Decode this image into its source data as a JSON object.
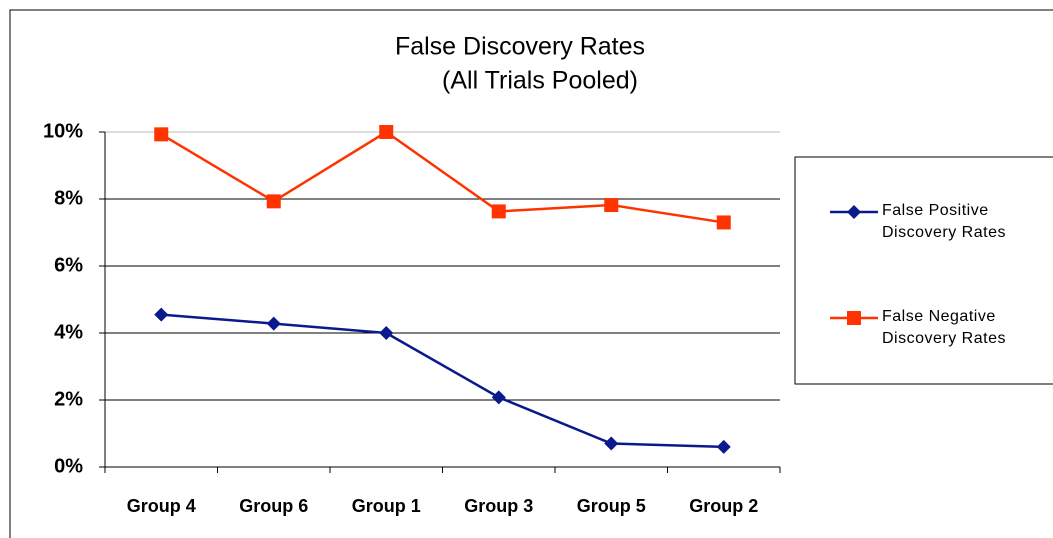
{
  "chart_data": {
    "type": "line",
    "title": "False Discovery Rates",
    "subtitle": "(All Trials Pooled)",
    "categories": [
      "Group 4",
      "Group 6",
      "Group 1",
      "Group 3",
      "Group 5",
      "Group 2"
    ],
    "series": [
      {
        "name": "False Positive Discovery Rates",
        "color": "#0a1a8c",
        "marker": "diamond",
        "values": [
          4.55,
          4.28,
          4.0,
          2.08,
          0.7,
          0.6
        ]
      },
      {
        "name": "False Negative Discovery Rates",
        "color": "#ff3300",
        "marker": "square",
        "values": [
          9.93,
          7.93,
          10.0,
          7.63,
          7.82,
          7.3
        ]
      }
    ],
    "ylim": [
      0,
      10
    ],
    "yticks": [
      {
        "value": 0,
        "label": "0%"
      },
      {
        "value": 2,
        "label": "2%"
      },
      {
        "value": 4,
        "label": "4%"
      },
      {
        "value": 6,
        "label": "6%"
      },
      {
        "value": 8,
        "label": "8%"
      },
      {
        "value": 10,
        "label": "10%"
      }
    ],
    "grid": true,
    "legend": "right"
  }
}
